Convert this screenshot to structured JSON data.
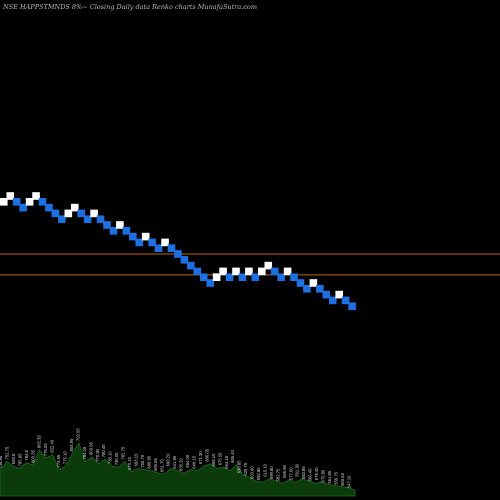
{
  "title": "NSE HAPPSTMNDS 8%~  Closing Daily data  Renko  charts MunafaSutra.com",
  "colors": {
    "background": "#000000",
    "up_brick": "#ffffff",
    "down_brick": "#1e6fe0",
    "level_line": "#b8651a",
    "volume_fill": "#0b3a0b",
    "volume_line": "#1c6b1c"
  },
  "chart_data": {
    "type": "renko",
    "title": "NSE HAPPSTMNDS 8%~  Closing Daily data  Renko  charts MunafaSutra.com",
    "brick_size_percent": 8,
    "bricks": [
      {
        "step": 0,
        "level": 0,
        "dir": "up"
      },
      {
        "step": 1,
        "level": 1,
        "dir": "up"
      },
      {
        "step": 2,
        "level": 0,
        "dir": "down"
      },
      {
        "step": 3,
        "level": -1,
        "dir": "down"
      },
      {
        "step": 4,
        "level": 0,
        "dir": "up"
      },
      {
        "step": 5,
        "level": 1,
        "dir": "up"
      },
      {
        "step": 6,
        "level": 0,
        "dir": "down"
      },
      {
        "step": 7,
        "level": -1,
        "dir": "down"
      },
      {
        "step": 8,
        "level": -2,
        "dir": "down"
      },
      {
        "step": 9,
        "level": -3,
        "dir": "down"
      },
      {
        "step": 10,
        "level": -2,
        "dir": "up"
      },
      {
        "step": 11,
        "level": -1,
        "dir": "up"
      },
      {
        "step": 12,
        "level": -2,
        "dir": "down"
      },
      {
        "step": 13,
        "level": -3,
        "dir": "down"
      },
      {
        "step": 14,
        "level": -2,
        "dir": "up"
      },
      {
        "step": 15,
        "level": -3,
        "dir": "down"
      },
      {
        "step": 16,
        "level": -4,
        "dir": "down"
      },
      {
        "step": 17,
        "level": -5,
        "dir": "down"
      },
      {
        "step": 18,
        "level": -4,
        "dir": "up"
      },
      {
        "step": 19,
        "level": -5,
        "dir": "down"
      },
      {
        "step": 20,
        "level": -6,
        "dir": "down"
      },
      {
        "step": 21,
        "level": -7,
        "dir": "down"
      },
      {
        "step": 22,
        "level": -6,
        "dir": "up"
      },
      {
        "step": 23,
        "level": -7,
        "dir": "down"
      },
      {
        "step": 24,
        "level": -8,
        "dir": "down"
      },
      {
        "step": 25,
        "level": -7,
        "dir": "up"
      },
      {
        "step": 26,
        "level": -8,
        "dir": "down"
      },
      {
        "step": 27,
        "level": -9,
        "dir": "down"
      },
      {
        "step": 28,
        "level": -10,
        "dir": "down"
      },
      {
        "step": 29,
        "level": -11,
        "dir": "down"
      },
      {
        "step": 30,
        "level": -12,
        "dir": "down"
      },
      {
        "step": 31,
        "level": -13,
        "dir": "down"
      },
      {
        "step": 32,
        "level": -14,
        "dir": "down"
      },
      {
        "step": 33,
        "level": -13,
        "dir": "up"
      },
      {
        "step": 34,
        "level": -12,
        "dir": "up"
      },
      {
        "step": 35,
        "level": -13,
        "dir": "down"
      },
      {
        "step": 36,
        "level": -12,
        "dir": "up"
      },
      {
        "step": 37,
        "level": -13,
        "dir": "down"
      },
      {
        "step": 38,
        "level": -12,
        "dir": "up"
      },
      {
        "step": 39,
        "level": -13,
        "dir": "down"
      },
      {
        "step": 40,
        "level": -12,
        "dir": "up"
      },
      {
        "step": 41,
        "level": -11,
        "dir": "up"
      },
      {
        "step": 42,
        "level": -12,
        "dir": "down"
      },
      {
        "step": 43,
        "level": -13,
        "dir": "down"
      },
      {
        "step": 44,
        "level": -12,
        "dir": "up"
      },
      {
        "step": 45,
        "level": -13,
        "dir": "down"
      },
      {
        "step": 46,
        "level": -14,
        "dir": "down"
      },
      {
        "step": 47,
        "level": -15,
        "dir": "down"
      },
      {
        "step": 48,
        "level": -14,
        "dir": "up"
      },
      {
        "step": 49,
        "level": -15,
        "dir": "down"
      },
      {
        "step": 50,
        "level": -16,
        "dir": "down"
      },
      {
        "step": 51,
        "level": -17,
        "dir": "down"
      },
      {
        "step": 52,
        "level": -16,
        "dir": "up"
      },
      {
        "step": 53,
        "level": -17,
        "dir": "down"
      },
      {
        "step": 54,
        "level": -18,
        "dir": "down"
      }
    ],
    "reference_levels": [
      -9,
      -12.6
    ],
    "volume_labels": [
      "736.95",
      "752.75",
      "683.8",
      "785.95",
      "784.8",
      "800.35",
      "862.35",
      "776.05",
      "822.40",
      "773.85",
      "775.10",
      "805.95",
      "702.65",
      "784.05",
      "803.95",
      "770.80",
      "780.45",
      "738.10",
      "735.05",
      "782.75",
      "670.10",
      "693.15",
      "700.70",
      "686.95",
      "666.05",
      "651.70",
      "690.20",
      "641.95",
      "635.20",
      "654.00",
      "646.15",
      "671.30",
      "686.05",
      "659.15",
      "675.55",
      "664.15",
      "686.40",
      "630.85",
      "625.75",
      "603.90",
      "592.85",
      "615.10",
      "599.80",
      "582.75",
      "596.90",
      "577.60",
      "591.30",
      "583.85",
      "566.40",
      "579.40",
      "570.80",
      "561.85",
      "556.75",
      "550.65",
      "547.10"
    ],
    "volume": [
      22,
      30,
      26,
      24,
      29,
      27,
      40,
      33,
      36,
      23,
      26,
      37,
      46,
      30,
      34,
      28,
      32,
      26,
      25,
      30,
      21,
      24,
      23,
      22,
      20,
      19,
      24,
      22,
      20,
      23,
      22,
      26,
      28,
      24,
      25,
      22,
      27,
      18,
      16,
      13,
      12,
      15,
      13,
      11,
      14,
      12,
      15,
      13,
      11,
      12,
      10,
      9,
      8,
      7,
      5
    ]
  }
}
